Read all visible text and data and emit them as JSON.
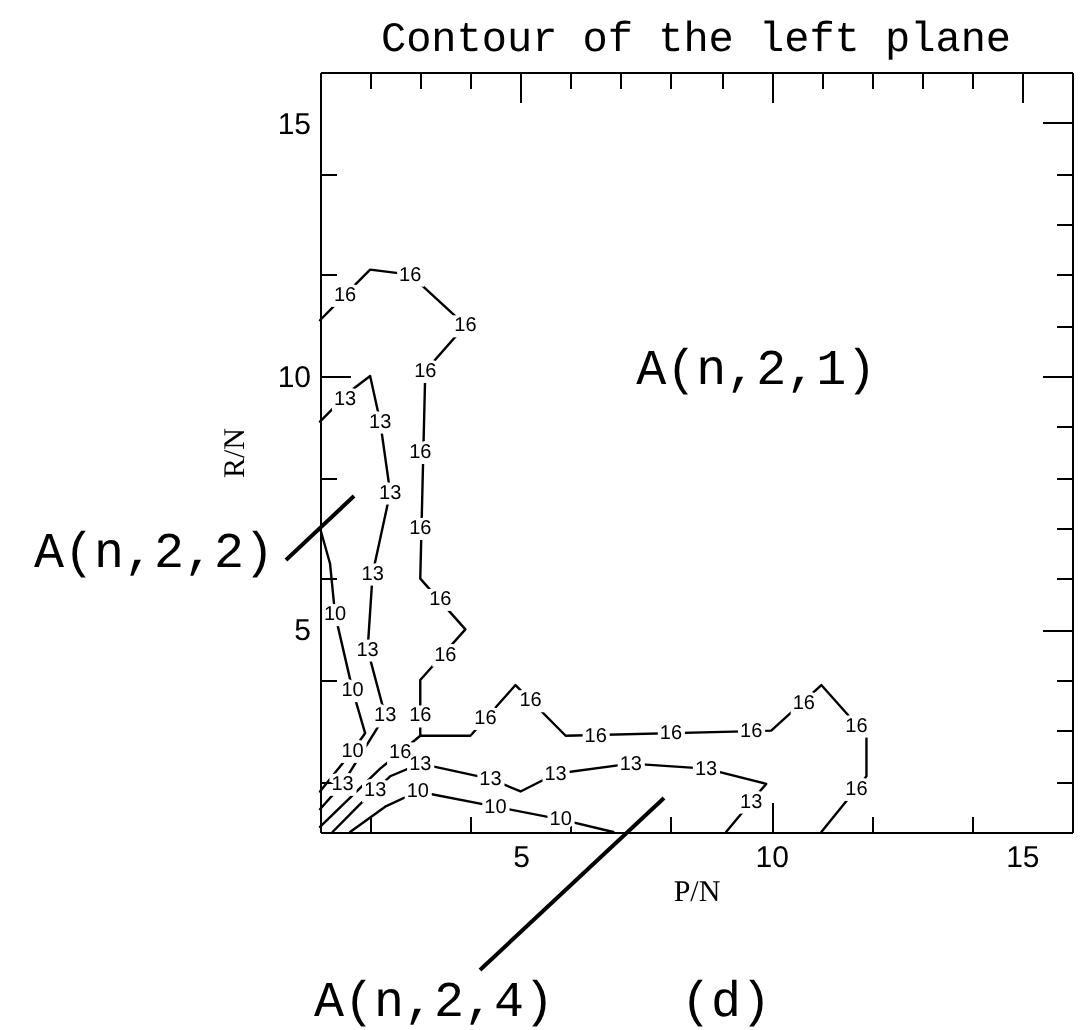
{
  "chart_data": {
    "type": "line",
    "title": "Contour of the left plane",
    "xlabel": "P/N",
    "ylabel": "R/N",
    "xlim": [
      1,
      16
    ],
    "ylim": [
      1,
      16
    ],
    "grid": false,
    "xticks": [
      {
        "value": 2,
        "label": null
      },
      {
        "value": 3,
        "label": null
      },
      {
        "value": 4,
        "label": null
      },
      5,
      {
        "value": 6,
        "label": null
      },
      {
        "value": 7,
        "label": null
      },
      {
        "value": 8,
        "label": null
      },
      {
        "value": 9,
        "label": null
      },
      10,
      {
        "value": 11,
        "label": null
      },
      {
        "value": 12,
        "label": null
      },
      {
        "value": 13,
        "label": null
      },
      {
        "value": 14,
        "label": null
      },
      15
    ],
    "yticks": [
      {
        "value": 2,
        "label": null
      },
      {
        "value": 3,
        "label": null
      },
      {
        "value": 4,
        "label": null
      },
      5,
      {
        "value": 6,
        "label": null
      },
      {
        "value": 7,
        "label": null
      },
      {
        "value": 8,
        "label": null
      },
      {
        "value": 9,
        "label": null
      },
      10,
      {
        "value": 11,
        "label": null
      },
      {
        "value": 12,
        "label": null
      },
      {
        "value": 13,
        "label": null
      },
      {
        "value": 14,
        "label": null
      },
      15
    ],
    "series": [
      {
        "color": "#000000",
        "x": [
          1,
          1.5,
          2,
          2.8,
          3.9,
          3.1,
          3,
          3.9,
          3,
          3,
          4,
          4.9,
          5.9,
          10,
          11,
          11.9,
          11.9,
          11
        ],
        "values": [
          11.1,
          11.6,
          12.1,
          12,
          11,
          10.1,
          6,
          5,
          4,
          2.9,
          2.9,
          3.9,
          2.9,
          3,
          3.9,
          2.9,
          2.1,
          1
        ]
      },
      {
        "color": "#000000",
        "x": [
          3,
          2.2,
          1
        ],
        "values": [
          2.9,
          2.25,
          1.1
        ]
      },
      {
        "color": "#000000",
        "x": [
          1,
          1.6,
          2,
          2.2,
          2.4,
          2.05,
          1.95,
          2.3,
          1.45,
          1
        ],
        "values": [
          9.1,
          9.7,
          10,
          9.1,
          7.7,
          6.1,
          4.6,
          3.3,
          1.95,
          1.45
        ]
      },
      {
        "color": "#000000",
        "x": [
          1.25,
          1.8,
          2.4,
          3,
          4.4,
          5,
          5.7,
          7.2,
          8.7,
          9.9,
          9.1
        ],
        "values": [
          1,
          1.55,
          2.1,
          2.35,
          2.05,
          1.8,
          2.15,
          2.35,
          2.25,
          1.95,
          1
        ]
      },
      {
        "color": "#000000",
        "x": [
          1,
          1.2,
          1.3,
          1.65,
          1.9,
          1.65,
          1
        ],
        "values": [
          7,
          6.3,
          5.3,
          3.8,
          2.95,
          2.6,
          1.8
        ]
      },
      {
        "color": "#000000",
        "x": [
          1.6,
          2.3,
          2.95,
          4.5,
          5.8,
          6.85
        ],
        "values": [
          1,
          1.5,
          1.8,
          1.5,
          1.25,
          1
        ]
      }
    ],
    "annotations": [
      {
        "text": "16",
        "x": 1.5,
        "y": 11.6
      },
      {
        "text": "16",
        "x": 2.8,
        "y": 12
      },
      {
        "text": "16",
        "x": 3.9,
        "y": 11
      },
      {
        "text": "16",
        "x": 3.1,
        "y": 10.1
      },
      {
        "text": "16",
        "x": 3,
        "y": 8.5
      },
      {
        "text": "16",
        "x": 3,
        "y": 7
      },
      {
        "text": "16",
        "x": 3.4,
        "y": 5.6
      },
      {
        "text": "16",
        "x": 3.5,
        "y": 4.5
      },
      {
        "text": "16",
        "x": 3,
        "y": 3.3
      },
      {
        "text": "16",
        "x": 4.3,
        "y": 3.25
      },
      {
        "text": "16",
        "x": 5.2,
        "y": 3.6
      },
      {
        "text": "16",
        "x": 6.5,
        "y": 2.9
      },
      {
        "text": "16",
        "x": 8,
        "y": 2.95
      },
      {
        "text": "16",
        "x": 9.6,
        "y": 3
      },
      {
        "text": "16",
        "x": 10.65,
        "y": 3.55
      },
      {
        "text": "16",
        "x": 11.7,
        "y": 3.1
      },
      {
        "text": "16",
        "x": 11.7,
        "y": 1.85
      },
      {
        "text": "16",
        "x": 2.6,
        "y": 2.57
      },
      {
        "text": "13",
        "x": 1.5,
        "y": 9.55
      },
      {
        "text": "13",
        "x": 2.2,
        "y": 9.1
      },
      {
        "text": "13",
        "x": 2.4,
        "y": 7.7
      },
      {
        "text": "13",
        "x": 2.05,
        "y": 6.1
      },
      {
        "text": "13",
        "x": 1.95,
        "y": 4.6
      },
      {
        "text": "13",
        "x": 2.3,
        "y": 3.3
      },
      {
        "text": "13",
        "x": 1.45,
        "y": 1.95
      },
      {
        "text": "13",
        "x": 2.1,
        "y": 1.82
      },
      {
        "text": "13",
        "x": 3,
        "y": 2.35
      },
      {
        "text": "13",
        "x": 4.4,
        "y": 2.05
      },
      {
        "text": "13",
        "x": 5.7,
        "y": 2.15
      },
      {
        "text": "13",
        "x": 7.2,
        "y": 2.35
      },
      {
        "text": "13",
        "x": 8.7,
        "y": 2.25
      },
      {
        "text": "13",
        "x": 9.6,
        "y": 1.6
      },
      {
        "text": "10",
        "x": 1.3,
        "y": 5.3
      },
      {
        "text": "10",
        "x": 1.65,
        "y": 3.8
      },
      {
        "text": "10",
        "x": 1.65,
        "y": 2.6
      },
      {
        "text": "10",
        "x": 2.95,
        "y": 1.8
      },
      {
        "text": "10",
        "x": 4.5,
        "y": 1.5
      },
      {
        "text": "10",
        "x": 5.8,
        "y": 1.25
      },
      "A(n,2,1)",
      "A(n,2,2)",
      "A(n,2,4)",
      "(d)"
    ]
  }
}
